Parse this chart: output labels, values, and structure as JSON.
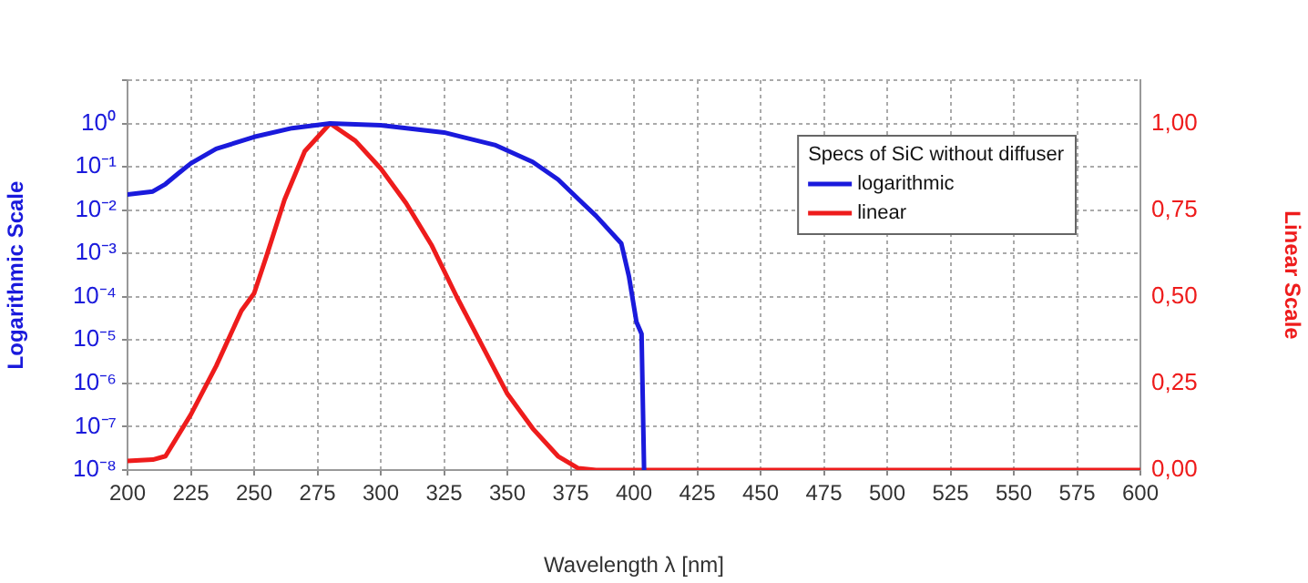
{
  "chart_data": {
    "type": "line",
    "xlabel": "Wavelength λ [nm]",
    "ylabel": "Logarithmic Scale",
    "y2label": "Linear Scale",
    "legend_title": "Specs of SiC without diffuser",
    "legend": "top right",
    "grid": true,
    "log": "y",
    "marker": "none",
    "line_style": "solid",
    "xlim": [
      200,
      600
    ],
    "xticks": [
      200,
      225,
      250,
      275,
      300,
      325,
      350,
      375,
      400,
      425,
      450,
      475,
      500,
      525,
      550,
      575,
      600
    ],
    "ylim": [
      1e-08,
      10
    ],
    "yticks": [
      {
        "value": 1e-08,
        "label": "10⁻⁸"
      },
      {
        "value": 1e-07,
        "label": "10⁻⁷"
      },
      {
        "value": 1e-06,
        "label": "10⁻⁶"
      },
      {
        "value": 1e-05,
        "label": "10⁻⁵"
      },
      {
        "value": 0.0001,
        "label": "10⁻⁴"
      },
      {
        "value": 0.001,
        "label": "10⁻³"
      },
      {
        "value": 0.01,
        "label": "10⁻²"
      },
      {
        "value": 0.1,
        "label": "10⁻¹"
      },
      {
        "value": 1,
        "label": "10⁰"
      },
      {
        "value": 10,
        "label": null
      }
    ],
    "y2lim": [
      0,
      1.125
    ],
    "y2ticks": [
      {
        "value": 0,
        "label": "0,00"
      },
      {
        "value": 0.25,
        "label": "0,25"
      },
      {
        "value": 0.5,
        "label": "0,50"
      },
      {
        "value": 0.75,
        "label": "0,75"
      },
      {
        "value": 1,
        "label": "1,00"
      }
    ],
    "series": [
      {
        "name": "logarithmic",
        "color": "#1a1adc",
        "x": [
          200,
          210,
          215,
          220,
          225,
          235,
          250,
          265,
          280,
          300,
          325,
          345,
          360,
          370,
          380,
          385,
          395,
          398,
          401,
          403,
          404
        ],
        "values": [
          0.023,
          0.027,
          0.04,
          0.07,
          0.12,
          0.26,
          0.49,
          0.78,
          1,
          0.91,
          0.62,
          0.32,
          0.13,
          0.051,
          0.014,
          0.0074,
          0.0017,
          0.0003,
          2.6e-05,
          1.4e-05,
          1e-08
        ]
      },
      {
        "name": "linear",
        "color": "#ee1c1c",
        "axis": "y2",
        "x": [
          200,
          210,
          215,
          225,
          235,
          245,
          250,
          255,
          262,
          270,
          280,
          290,
          300,
          310,
          320,
          330,
          340,
          350,
          360,
          370,
          378,
          385,
          600
        ],
        "values": [
          0.026,
          0.03,
          0.04,
          0.16,
          0.3,
          0.46,
          0.51,
          0.62,
          0.78,
          0.92,
          1,
          0.95,
          0.87,
          0.77,
          0.65,
          0.5,
          0.36,
          0.22,
          0.12,
          0.04,
          0.005,
          0,
          0
        ]
      }
    ]
  }
}
